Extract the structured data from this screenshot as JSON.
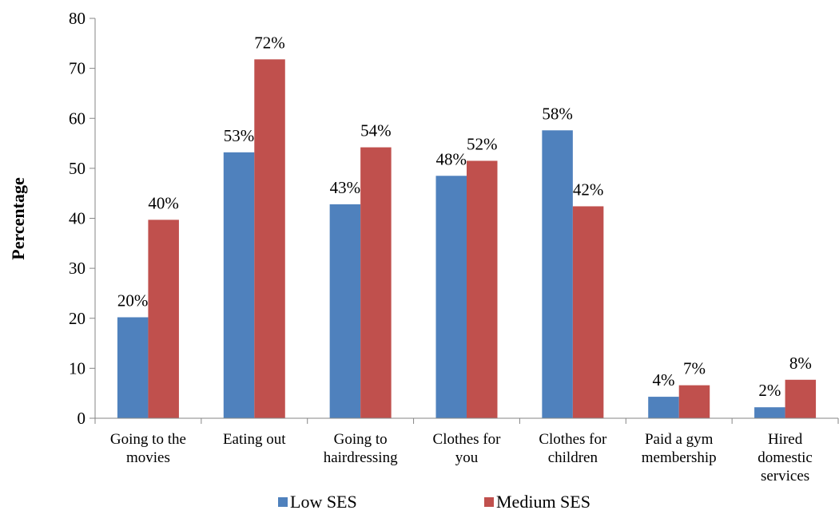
{
  "chart_data": {
    "type": "bar",
    "ylabel": "Percentage",
    "xlabel": "",
    "ylim": [
      0,
      80
    ],
    "yticks": [
      0,
      10,
      20,
      30,
      40,
      50,
      60,
      70,
      80
    ],
    "grid": false,
    "legend_position": "bottom",
    "categories": [
      [
        "Going to the",
        "movies"
      ],
      [
        "Eating out"
      ],
      [
        "Going to",
        "hairdressing"
      ],
      [
        "Clothes for",
        "you"
      ],
      [
        "Clothes for",
        "children"
      ],
      [
        "Paid a gym",
        "membership"
      ],
      [
        "Hired",
        "domestic",
        "services"
      ]
    ],
    "series": [
      {
        "name": "Low SES",
        "color": "#4F81BD",
        "values": [
          20.2,
          53.2,
          42.8,
          48.5,
          57.6,
          4.3,
          2.2
        ],
        "labels": [
          "20%",
          "53%",
          "43%",
          "48%",
          "58%",
          "4%",
          "2%"
        ]
      },
      {
        "name": "Medium SES",
        "color": "#C0504D",
        "values": [
          39.7,
          71.8,
          54.2,
          51.5,
          42.4,
          6.6,
          7.7
        ],
        "labels": [
          "40%",
          "72%",
          "54%",
          "52%",
          "42%",
          "7%",
          "8%"
        ]
      }
    ]
  }
}
